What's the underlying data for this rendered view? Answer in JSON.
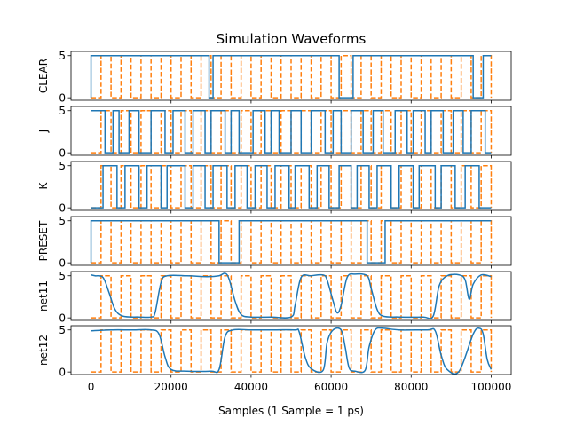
{
  "chart_data": {
    "type": "line",
    "title": "Simulation Waveforms",
    "xlabel": "Samples (1 Sample = 1 ps)",
    "xlim": [
      -5000,
      105000
    ],
    "x_ticks": [
      0,
      20000,
      40000,
      60000,
      80000,
      100000
    ],
    "x_tick_labels": [
      "0",
      "20000",
      "40000",
      "60000",
      "80000",
      "100000"
    ],
    "y_ticks": [
      0,
      5
    ],
    "y_tick_labels": [
      "0",
      "5"
    ],
    "ylim": [
      -0.3,
      5.5
    ],
    "grid": false,
    "clock": {
      "style": "dashed",
      "color": "#ff7f0e",
      "period": 5000,
      "high": 5,
      "low": 0
    },
    "subplots": [
      {
        "ylabel": "CLEAR",
        "color": "#1f77b4",
        "shape": "square",
        "points": [
          [
            0,
            0
          ],
          [
            0,
            5
          ],
          [
            29500,
            5
          ],
          [
            29500,
            0
          ],
          [
            30500,
            0
          ],
          [
            30500,
            5
          ],
          [
            62000,
            5
          ],
          [
            62000,
            0
          ],
          [
            65500,
            0
          ],
          [
            65500,
            5
          ],
          [
            95500,
            5
          ],
          [
            95500,
            0
          ],
          [
            98000,
            0
          ],
          [
            98000,
            5
          ],
          [
            100000,
            5
          ]
        ]
      },
      {
        "ylabel": "J",
        "color": "#1f77b4",
        "shape": "square",
        "points": [
          [
            0,
            5
          ],
          [
            3500,
            5
          ],
          [
            3500,
            0
          ],
          [
            5500,
            0
          ],
          [
            5500,
            5
          ],
          [
            7000,
            5
          ],
          [
            7000,
            0
          ],
          [
            9500,
            0
          ],
          [
            9500,
            5
          ],
          [
            12000,
            5
          ],
          [
            12000,
            0
          ],
          [
            15000,
            0
          ],
          [
            15000,
            5
          ],
          [
            18500,
            5
          ],
          [
            18500,
            0
          ],
          [
            20500,
            0
          ],
          [
            20500,
            5
          ],
          [
            23500,
            5
          ],
          [
            23500,
            0
          ],
          [
            25500,
            0
          ],
          [
            25500,
            5
          ],
          [
            28500,
            5
          ],
          [
            28500,
            0
          ],
          [
            30000,
            0
          ],
          [
            30000,
            5
          ],
          [
            33500,
            5
          ],
          [
            33500,
            0
          ],
          [
            35000,
            0
          ],
          [
            35000,
            5
          ],
          [
            37000,
            5
          ],
          [
            37000,
            0
          ],
          [
            40500,
            0
          ],
          [
            40500,
            5
          ],
          [
            43500,
            5
          ],
          [
            43500,
            0
          ],
          [
            45000,
            0
          ],
          [
            45000,
            5
          ],
          [
            47000,
            5
          ],
          [
            47000,
            0
          ],
          [
            50000,
            0
          ],
          [
            50000,
            5
          ],
          [
            52500,
            5
          ],
          [
            52500,
            0
          ],
          [
            55000,
            0
          ],
          [
            55000,
            5
          ],
          [
            58500,
            5
          ],
          [
            58500,
            0
          ],
          [
            60500,
            0
          ],
          [
            60500,
            5
          ],
          [
            62500,
            5
          ],
          [
            62500,
            0
          ],
          [
            65000,
            0
          ],
          [
            65000,
            5
          ],
          [
            68000,
            5
          ],
          [
            68000,
            0
          ],
          [
            70500,
            0
          ],
          [
            70500,
            5
          ],
          [
            73000,
            5
          ],
          [
            73000,
            0
          ],
          [
            76000,
            0
          ],
          [
            76000,
            5
          ],
          [
            79000,
            5
          ],
          [
            79000,
            0
          ],
          [
            80500,
            0
          ],
          [
            80500,
            5
          ],
          [
            83500,
            5
          ],
          [
            83500,
            0
          ],
          [
            85000,
            0
          ],
          [
            85000,
            5
          ],
          [
            88000,
            5
          ],
          [
            88000,
            0
          ],
          [
            90500,
            0
          ],
          [
            90500,
            5
          ],
          [
            93000,
            5
          ],
          [
            93000,
            0
          ],
          [
            95000,
            0
          ],
          [
            95000,
            5
          ],
          [
            98500,
            5
          ],
          [
            98500,
            0
          ],
          [
            100000,
            0
          ]
        ]
      },
      {
        "ylabel": "K",
        "color": "#1f77b4",
        "shape": "square",
        "points": [
          [
            0,
            0
          ],
          [
            3000,
            0
          ],
          [
            3000,
            5
          ],
          [
            6500,
            5
          ],
          [
            6500,
            0
          ],
          [
            8500,
            0
          ],
          [
            8500,
            5
          ],
          [
            12000,
            5
          ],
          [
            12000,
            0
          ],
          [
            14000,
            0
          ],
          [
            14000,
            5
          ],
          [
            17500,
            5
          ],
          [
            17500,
            0
          ],
          [
            19000,
            0
          ],
          [
            19000,
            5
          ],
          [
            23500,
            5
          ],
          [
            23500,
            0
          ],
          [
            25500,
            0
          ],
          [
            25500,
            5
          ],
          [
            28500,
            5
          ],
          [
            28500,
            0
          ],
          [
            30500,
            0
          ],
          [
            30500,
            5
          ],
          [
            34000,
            5
          ],
          [
            34000,
            0
          ],
          [
            36000,
            0
          ],
          [
            36000,
            5
          ],
          [
            39000,
            5
          ],
          [
            39000,
            0
          ],
          [
            41000,
            0
          ],
          [
            41000,
            5
          ],
          [
            44000,
            5
          ],
          [
            44000,
            0
          ],
          [
            46000,
            0
          ],
          [
            46000,
            5
          ],
          [
            49500,
            5
          ],
          [
            49500,
            0
          ],
          [
            51000,
            0
          ],
          [
            51000,
            5
          ],
          [
            54500,
            5
          ],
          [
            54500,
            0
          ],
          [
            56500,
            0
          ],
          [
            56500,
            5
          ],
          [
            59500,
            5
          ],
          [
            59500,
            0
          ],
          [
            62000,
            0
          ],
          [
            62000,
            5
          ],
          [
            65000,
            5
          ],
          [
            65000,
            0
          ],
          [
            66500,
            0
          ],
          [
            66500,
            5
          ],
          [
            69500,
            5
          ],
          [
            69500,
            0
          ],
          [
            71500,
            0
          ],
          [
            71500,
            5
          ],
          [
            75000,
            5
          ],
          [
            75000,
            0
          ],
          [
            77000,
            0
          ],
          [
            77000,
            5
          ],
          [
            80500,
            5
          ],
          [
            80500,
            0
          ],
          [
            82000,
            0
          ],
          [
            82000,
            5
          ],
          [
            86000,
            5
          ],
          [
            86000,
            0
          ],
          [
            87500,
            0
          ],
          [
            87500,
            5
          ],
          [
            91000,
            5
          ],
          [
            91000,
            0
          ],
          [
            93500,
            0
          ],
          [
            93500,
            5
          ],
          [
            97000,
            5
          ],
          [
            97000,
            0
          ],
          [
            100000,
            0
          ]
        ]
      },
      {
        "ylabel": "PRESET",
        "color": "#1f77b4",
        "shape": "square",
        "points": [
          [
            0,
            0
          ],
          [
            0,
            5
          ],
          [
            32000,
            5
          ],
          [
            32000,
            0
          ],
          [
            37000,
            0
          ],
          [
            37000,
            5
          ],
          [
            69000,
            5
          ],
          [
            69000,
            0
          ],
          [
            73500,
            0
          ],
          [
            73500,
            5
          ],
          [
            100000,
            5
          ]
        ]
      },
      {
        "ylabel": "net11",
        "color": "#1f77b4",
        "shape": "smooth",
        "points": [
          [
            0,
            5.1
          ],
          [
            1000,
            5.0
          ],
          [
            3000,
            4.8
          ],
          [
            4500,
            3.0
          ],
          [
            6000,
            1.0
          ],
          [
            8000,
            0.2
          ],
          [
            12000,
            0.1
          ],
          [
            15000,
            0.1
          ],
          [
            16000,
            0.6
          ],
          [
            17500,
            4.2
          ],
          [
            19000,
            5.0
          ],
          [
            24000,
            5.0
          ],
          [
            29000,
            4.9
          ],
          [
            32000,
            5.0
          ],
          [
            33500,
            5.3
          ],
          [
            34500,
            4.6
          ],
          [
            36000,
            2.0
          ],
          [
            37500,
            0.4
          ],
          [
            40000,
            0.1
          ],
          [
            45000,
            0.1
          ],
          [
            50000,
            0.1
          ],
          [
            51000,
            1.5
          ],
          [
            52500,
            4.8
          ],
          [
            55000,
            5.0
          ],
          [
            58000,
            5.1
          ],
          [
            59000,
            4.5
          ],
          [
            60500,
            2.0
          ],
          [
            61500,
            0.6
          ],
          [
            62500,
            1.5
          ],
          [
            64000,
            4.8
          ],
          [
            66000,
            5.2
          ],
          [
            69000,
            5.0
          ],
          [
            70000,
            3.5
          ],
          [
            71500,
            1.0
          ],
          [
            73000,
            0.2
          ],
          [
            77000,
            0.1
          ],
          [
            83000,
            0.1
          ],
          [
            85500,
            0.2
          ],
          [
            87000,
            3.8
          ],
          [
            89000,
            5.0
          ],
          [
            92000,
            5.1
          ],
          [
            93500,
            4.5
          ],
          [
            94500,
            2.2
          ],
          [
            95500,
            4.0
          ],
          [
            97500,
            5.1
          ],
          [
            100000,
            4.9
          ]
        ]
      },
      {
        "ylabel": "net12",
        "color": "#1f77b4",
        "shape": "smooth",
        "points": [
          [
            0,
            4.9
          ],
          [
            5000,
            5.0
          ],
          [
            10000,
            5.0
          ],
          [
            15000,
            5.0
          ],
          [
            17000,
            4.5
          ],
          [
            18500,
            1.8
          ],
          [
            20000,
            0.3
          ],
          [
            24000,
            0.1
          ],
          [
            30000,
            0.1
          ],
          [
            32000,
            0.3
          ],
          [
            33500,
            4.2
          ],
          [
            35500,
            5.0
          ],
          [
            40000,
            5.0
          ],
          [
            46000,
            5.0
          ],
          [
            51000,
            5.0
          ],
          [
            52000,
            4.8
          ],
          [
            53500,
            1.8
          ],
          [
            55000,
            0.4
          ],
          [
            58000,
            0.2
          ],
          [
            59000,
            3.5
          ],
          [
            60500,
            5.0
          ],
          [
            62500,
            5.0
          ],
          [
            63500,
            3.0
          ],
          [
            64500,
            0.5
          ],
          [
            66000,
            0.1
          ],
          [
            68500,
            0.2
          ],
          [
            69500,
            3.0
          ],
          [
            71000,
            5.0
          ],
          [
            73000,
            5.2
          ],
          [
            77000,
            5.0
          ],
          [
            84000,
            5.0
          ],
          [
            86000,
            4.9
          ],
          [
            87500,
            2.0
          ],
          [
            89000,
            0.3
          ],
          [
            92000,
            0.1
          ],
          [
            95500,
            4.5
          ],
          [
            97000,
            5.2
          ],
          [
            98000,
            4.5
          ],
          [
            99000,
            1.5
          ],
          [
            100000,
            0.3
          ]
        ]
      }
    ]
  }
}
